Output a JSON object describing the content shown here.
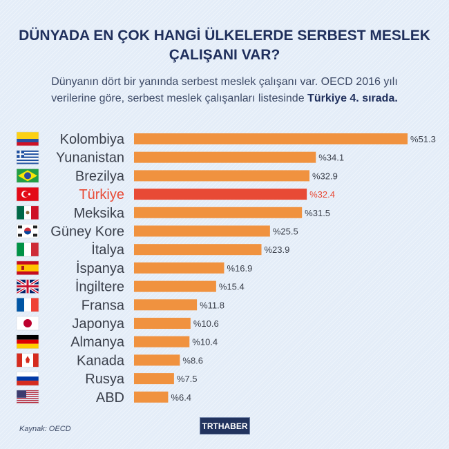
{
  "title_lines": [
    "DÜNYADA EN ÇOK HANGİ ÜLKELERDE SERBEST MESLEK",
    "ÇALIŞANI VAR?"
  ],
  "subtitle_line1": "Dünyanın dört bir yanında serbest meslek çalışanı var. OECD 2016 yılı",
  "subtitle_line2_plain": "verilerine göre, serbest meslek çalışanları listesinde ",
  "subtitle_line2_bold": "Türkiye 4. sırada.",
  "source": "Kaynak: OECD",
  "logo": "TRTHABER",
  "colors": {
    "bar": "#f0923f",
    "highlight": "#e84a35",
    "label": "#3a3f4a",
    "title": "#1f2f5c"
  },
  "chart_data": {
    "type": "bar",
    "orientation": "horizontal",
    "value_prefix": "%",
    "categories": [
      "Kolombiya",
      "Yunanistan",
      "Brezilya",
      "Türkiye",
      "Meksika",
      "Güney Kore",
      "İtalya",
      "İspanya",
      "İngiltere",
      "Fransa",
      "Japonya",
      "Almanya",
      "Kanada",
      "Rusya",
      "ABD"
    ],
    "values": [
      51.3,
      34.1,
      32.9,
      32.4,
      31.5,
      25.5,
      23.9,
      16.9,
      15.4,
      11.8,
      10.6,
      10.4,
      8.6,
      7.5,
      6.4
    ],
    "highlight": "Türkiye",
    "flags": [
      "colombia",
      "greece",
      "brazil",
      "turkey",
      "mexico",
      "south-korea",
      "italy",
      "spain",
      "uk",
      "france",
      "japan",
      "germany",
      "canada",
      "russia",
      "usa"
    ]
  }
}
